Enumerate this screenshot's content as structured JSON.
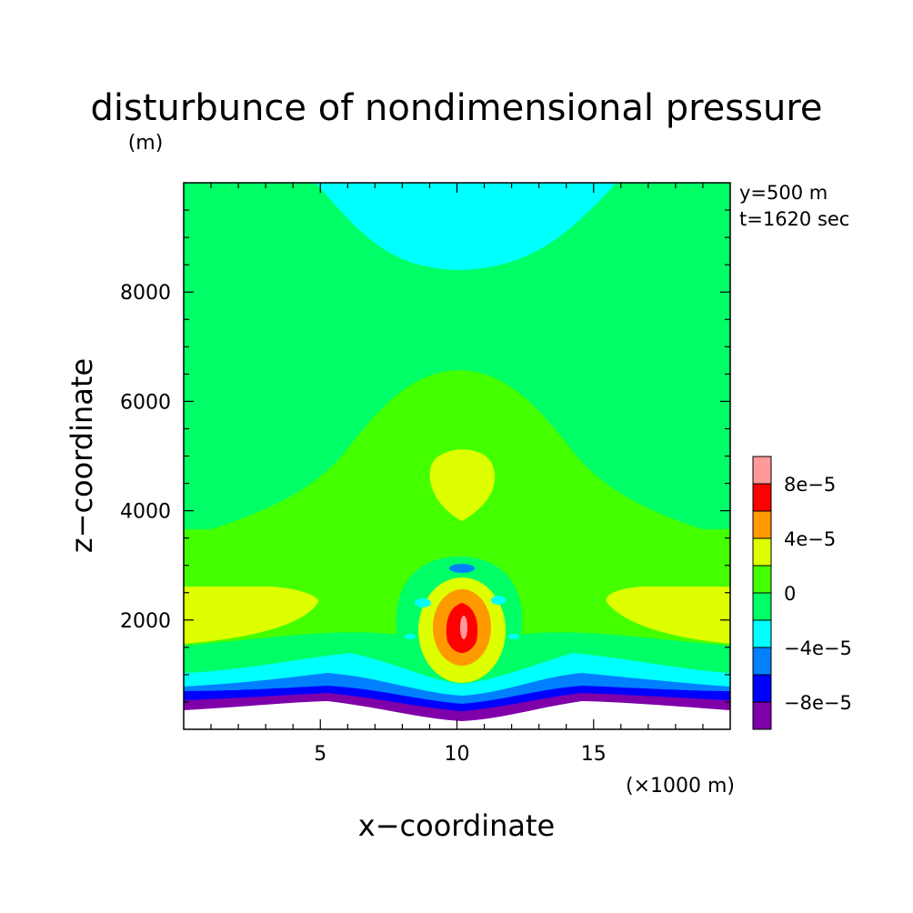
{
  "chart_data": {
    "type": "contour",
    "title": "disturbunce of nondimensional pressure",
    "ylabel_unit": "(m)",
    "xlabel": "x−coordinate",
    "ylabel": "z−coordinate",
    "xlabel_unit": "(×1000 m)",
    "annotations": [
      "y=500 m",
      "t=1620 sec"
    ],
    "xlim": [
      0,
      20
    ],
    "ylim": [
      0,
      10000
    ],
    "xticks": [
      {
        "v": 5,
        "label": "5"
      },
      {
        "v": 10,
        "label": "10"
      },
      {
        "v": 15,
        "label": "15"
      }
    ],
    "yticks": [
      {
        "v": 2000,
        "label": "2000"
      },
      {
        "v": 4000,
        "label": "4000"
      },
      {
        "v": 6000,
        "label": "6000"
      },
      {
        "v": 8000,
        "label": "8000"
      }
    ],
    "contour_levels": [
      -0.0001,
      -8e-05,
      -6e-05,
      -4e-05,
      -2e-05,
      0,
      2e-05,
      4e-05,
      6e-05,
      8e-05,
      0.0001
    ],
    "colorbar": {
      "colors": [
        "#7f00a8",
        "#0000ff",
        "#0080ff",
        "#00ffff",
        "#00ff66",
        "#44ff00",
        "#ddff00",
        "#ff9900",
        "#ff0000",
        "#ff9999"
      ],
      "labels": [
        {
          "index": 1,
          "label": "−8e−5"
        },
        {
          "index": 3,
          "label": "−4e−5"
        },
        {
          "index": 5,
          "label": "0"
        },
        {
          "index": 7,
          "label": "4e−5"
        },
        {
          "index": 9,
          "label": "8e−5"
        }
      ]
    },
    "regions": [
      {
        "name": "background",
        "color": "#00ff66"
      },
      {
        "name": "upper-negative-cap",
        "color": "#00ffff"
      },
      {
        "name": "positive-dome",
        "color": "#44ff00"
      },
      {
        "name": "upper-positive-blob",
        "color": "#ddff00"
      },
      {
        "name": "left-positive-lobe",
        "color": "#ddff00"
      },
      {
        "name": "right-positive-lobe",
        "color": "#ddff00"
      },
      {
        "name": "core-max",
        "color": "#ff9999"
      },
      {
        "name": "near-ground-bands",
        "color": "#7f00a8"
      },
      {
        "name": "terrain",
        "color": "#ffffff"
      }
    ]
  }
}
